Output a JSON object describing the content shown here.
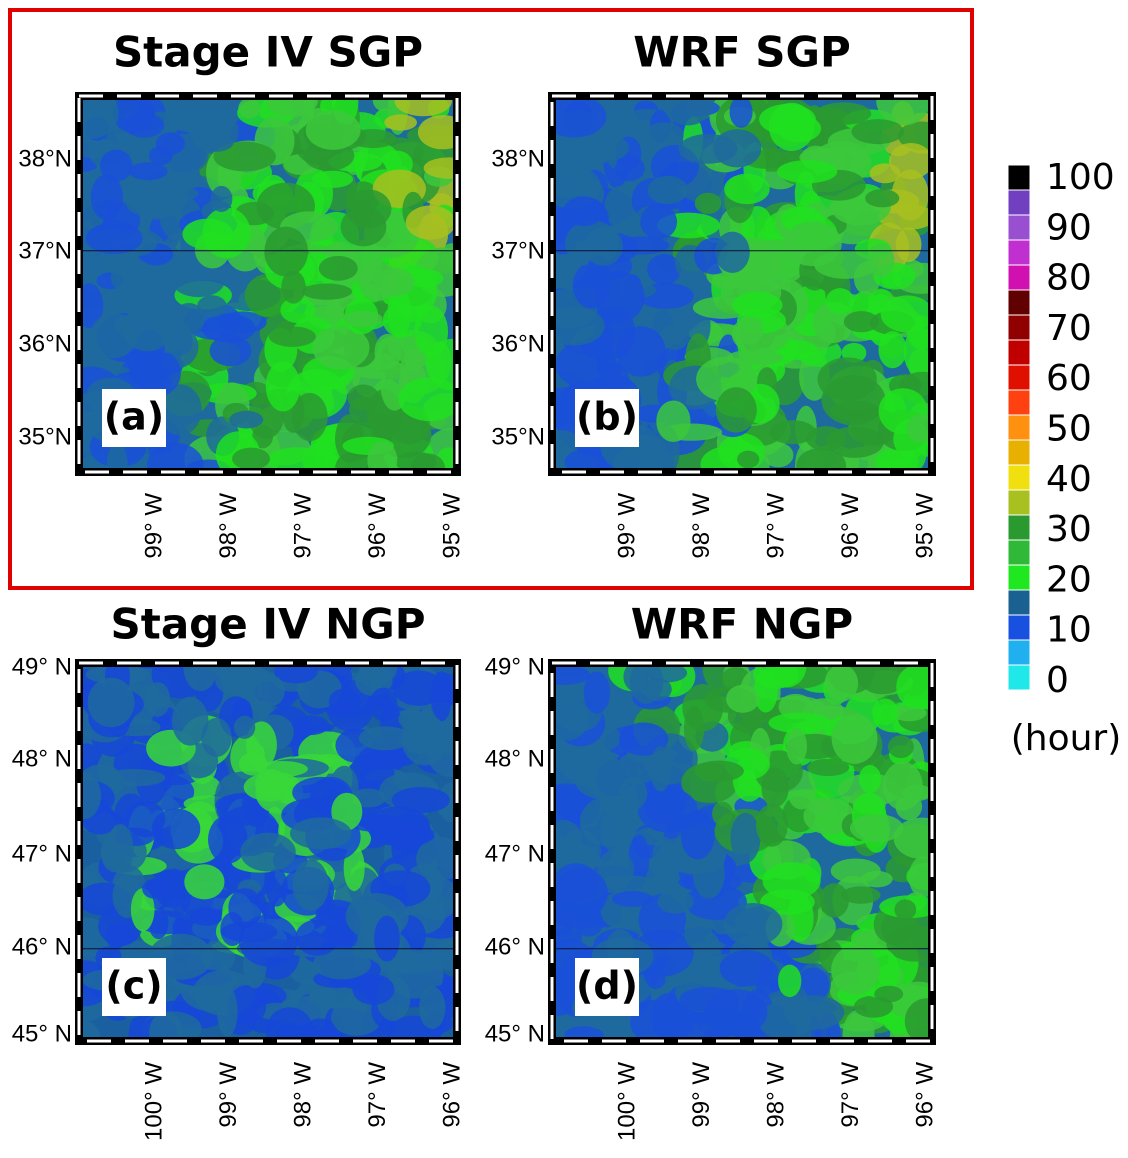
{
  "panels": [
    {
      "title": "Stage IV SGP",
      "label": "(a)",
      "lat_labels": [
        "38°N",
        "37°N",
        "36°N",
        "35°N"
      ],
      "lon_labels": [
        "99° W",
        "98° W",
        "97° W",
        "96° W",
        "95° W"
      ]
    },
    {
      "title": "WRF SGP",
      "label": "(b)",
      "lat_labels": [
        "38°N",
        "37°N",
        "36°N",
        "35°N"
      ],
      "lon_labels": [
        "99° W",
        "98° W",
        "97° W",
        "96° W",
        "95° W"
      ]
    },
    {
      "title": "Stage IV NGP",
      "label": "(c)",
      "lat_labels": [
        "49° N",
        "48° N",
        "47° N",
        "46° N",
        "45° N"
      ],
      "lon_labels": [
        "100° W",
        "99° W",
        "98° W",
        "97° W",
        "96° W"
      ]
    },
    {
      "title": "WRF NGP",
      "label": "(d)",
      "lat_labels": [
        "49° N",
        "48° N",
        "47° N",
        "46° N",
        "45° N"
      ],
      "lon_labels": [
        "100° W",
        "99° W",
        "98° W",
        "97° W",
        "96° W"
      ]
    }
  ],
  "colorbar": {
    "ticks": [
      "100",
      "90",
      "80",
      "70",
      "60",
      "50",
      "40",
      "30",
      "20",
      "10",
      "0"
    ],
    "unit": "(hour)"
  }
}
